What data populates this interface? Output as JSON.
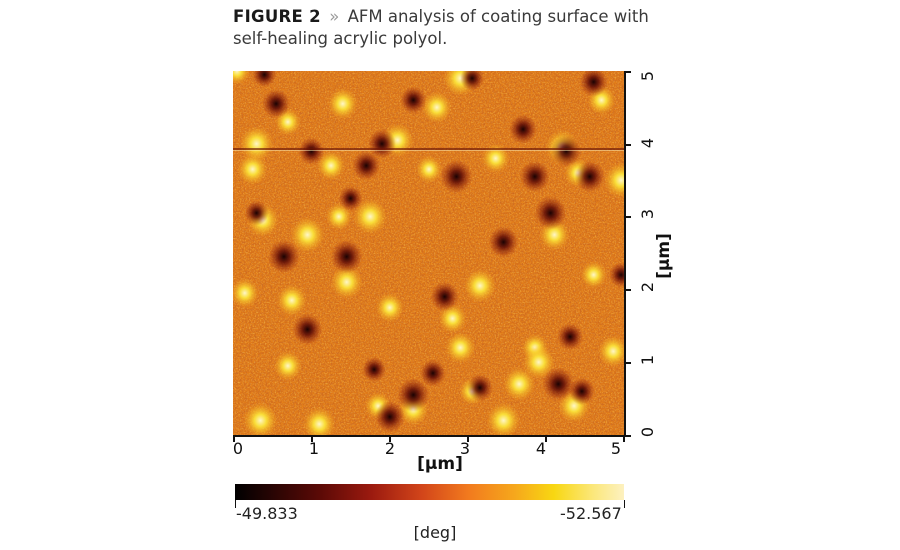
{
  "caption": {
    "figure_label": "FIGURE 2",
    "separator": "»",
    "text": "AFM analysis of coating surface with self-healing acrylic polyol."
  },
  "chart_data": {
    "type": "heatmap",
    "title": "AFM analysis of coating surface with self-healing acrylic polyol.",
    "xlabel": "[µm]",
    "ylabel": "[µm]",
    "xlim": [
      0,
      5
    ],
    "ylim": [
      0,
      5
    ],
    "x_ticks": [
      "0",
      "1",
      "2",
      "3",
      "4",
      "5"
    ],
    "y_ticks": [
      "0",
      "1",
      "2",
      "3",
      "4",
      "5"
    ],
    "colorbar": {
      "min_label": "-49.833",
      "max_label": "-52.567",
      "unit": "[deg]",
      "colors": [
        "#000000",
        "#5c0a06",
        "#d2451a",
        "#f6a81c",
        "#f8d712",
        "#fdf1c0"
      ]
    },
    "grid": false,
    "scan_line_artifact_y": 3.9,
    "base_color": "#e07a18",
    "bright_spots": [
      [
        0.05,
        5.0
      ],
      [
        0.25,
        3.65
      ],
      [
        0.3,
        4.0
      ],
      [
        0.15,
        1.95
      ],
      [
        0.38,
        2.95
      ],
      [
        0.7,
        4.3
      ],
      [
        0.75,
        1.85
      ],
      [
        0.95,
        2.75
      ],
      [
        1.25,
        3.7
      ],
      [
        1.45,
        2.1
      ],
      [
        1.35,
        3.0
      ],
      [
        1.4,
        4.55
      ],
      [
        1.75,
        3.0
      ],
      [
        2.0,
        1.75
      ],
      [
        2.1,
        4.05
      ],
      [
        2.5,
        3.65
      ],
      [
        2.6,
        4.5
      ],
      [
        2.9,
        4.9
      ],
      [
        2.8,
        1.6
      ],
      [
        3.15,
        2.05
      ],
      [
        3.05,
        0.6
      ],
      [
        2.9,
        1.2
      ],
      [
        3.45,
        0.2
      ],
      [
        3.35,
        3.8
      ],
      [
        3.65,
        0.7
      ],
      [
        3.85,
        1.2
      ],
      [
        4.1,
        2.75
      ],
      [
        4.2,
        3.95
      ],
      [
        4.4,
        3.6
      ],
      [
        4.35,
        0.4
      ],
      [
        4.6,
        2.2
      ],
      [
        4.85,
        1.15
      ],
      [
        4.95,
        3.5
      ],
      [
        4.7,
        4.6
      ],
      [
        1.1,
        0.15
      ],
      [
        1.85,
        0.4
      ],
      [
        2.3,
        0.35
      ],
      [
        0.35,
        0.2
      ],
      [
        0.7,
        0.95
      ],
      [
        3.9,
        1.0
      ]
    ],
    "dark_spots": [
      [
        0.3,
        3.05
      ],
      [
        0.55,
        4.55
      ],
      [
        0.65,
        2.45
      ],
      [
        1.0,
        3.9
      ],
      [
        0.95,
        1.45
      ],
      [
        1.5,
        3.25
      ],
      [
        1.7,
        3.7
      ],
      [
        1.45,
        2.45
      ],
      [
        2.3,
        4.6
      ],
      [
        2.0,
        0.25
      ],
      [
        1.8,
        0.9
      ],
      [
        2.7,
        1.9
      ],
      [
        2.85,
        3.55
      ],
      [
        3.15,
        0.65
      ],
      [
        3.45,
        2.65
      ],
      [
        3.05,
        4.9
      ],
      [
        3.7,
        4.2
      ],
      [
        4.05,
        3.05
      ],
      [
        4.3,
        1.35
      ],
      [
        4.55,
        3.55
      ],
      [
        4.95,
        2.2
      ],
      [
        4.6,
        4.85
      ],
      [
        4.15,
        0.7
      ],
      [
        2.55,
        0.85
      ],
      [
        3.85,
        3.55
      ],
      [
        0.4,
        4.95
      ],
      [
        1.9,
        4.0
      ],
      [
        2.3,
        0.55
      ],
      [
        4.45,
        0.6
      ],
      [
        4.25,
        3.9
      ]
    ]
  }
}
